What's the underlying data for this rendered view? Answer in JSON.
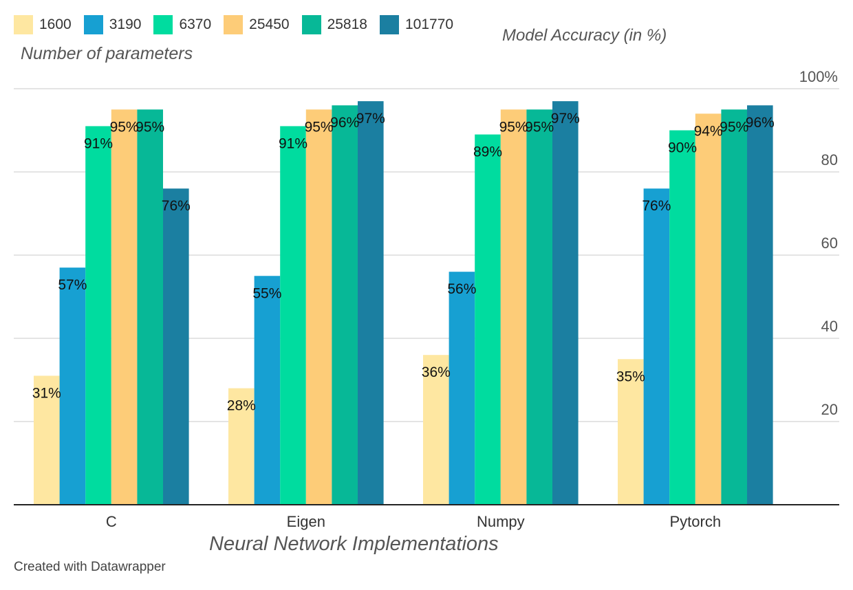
{
  "chart_data": {
    "type": "bar",
    "title": "",
    "legend_title": "Number of parameters",
    "xlabel": "Neural Network Implementations",
    "ylabel": "Model Accuracy (in %)",
    "categories": [
      "C",
      "Eigen",
      "Numpy",
      "Pytorch"
    ],
    "series": [
      {
        "name": "1600",
        "color": "#fee7a1",
        "values": [
          31,
          28,
          36,
          35
        ],
        "labels": [
          "31%",
          "28%",
          "36%",
          "35%"
        ]
      },
      {
        "name": "3190",
        "color": "#17a0d2",
        "values": [
          57,
          55,
          56,
          76
        ],
        "labels": [
          "57%",
          "55%",
          "56%",
          "76%"
        ]
      },
      {
        "name": "6370",
        "color": "#00dc9f",
        "values": [
          91,
          91,
          89,
          90
        ],
        "labels": [
          "91%",
          "91%",
          "89%",
          "90%"
        ]
      },
      {
        "name": "25450",
        "color": "#fdcc78",
        "values": [
          95,
          95,
          95,
          94
        ],
        "labels": [
          "95%",
          "95%",
          "95%",
          "94%"
        ]
      },
      {
        "name": "25818",
        "color": "#07b897",
        "values": [
          95,
          96,
          95,
          95
        ],
        "labels": [
          "95%",
          "96%",
          "95%",
          "95%"
        ]
      },
      {
        "name": "101770",
        "color": "#1b7fa1",
        "values": [
          76,
          97,
          97,
          96
        ],
        "labels": [
          "76%",
          "97%",
          "97%",
          "96%"
        ]
      }
    ],
    "y_ticks": [
      {
        "value": 20,
        "label": "20"
      },
      {
        "value": 40,
        "label": "40"
      },
      {
        "value": 60,
        "label": "60"
      },
      {
        "value": 80,
        "label": "80"
      },
      {
        "value": 100,
        "label": "100%"
      }
    ],
    "ylim": [
      0,
      100
    ],
    "y_axis_position": "right",
    "grid": true,
    "legend_position": "top-left"
  },
  "credit": "Created with Datawrapper"
}
